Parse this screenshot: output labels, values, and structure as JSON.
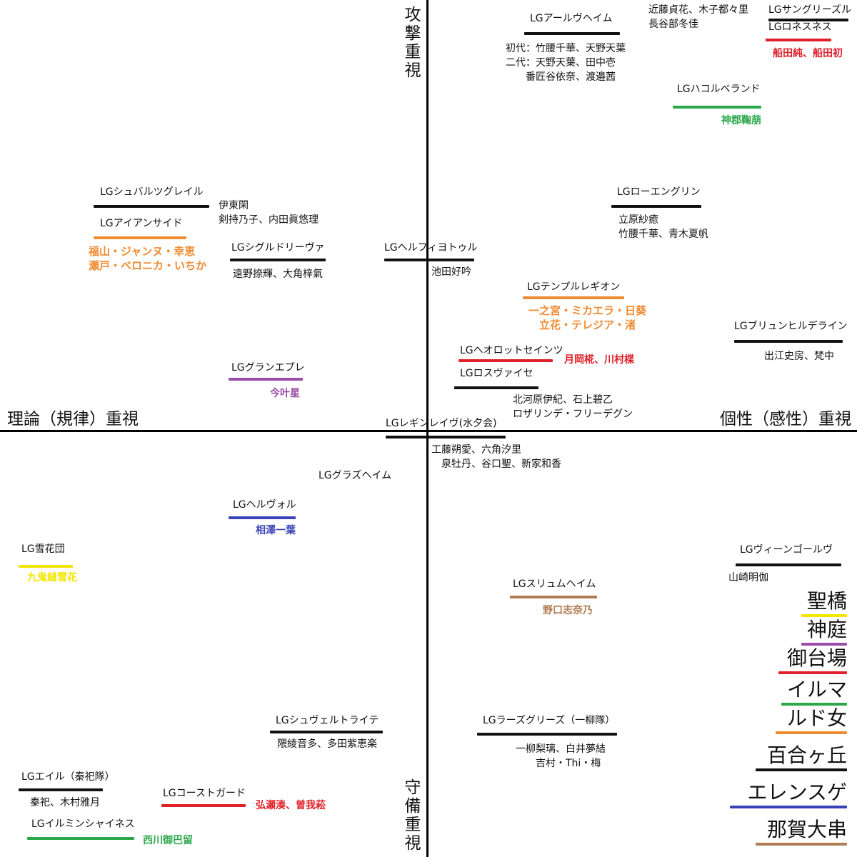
{
  "axes": {
    "top": "攻撃重視",
    "bottom": "守備重視",
    "left": "理論（規律）重視",
    "right": "個性（感性）重視"
  },
  "colors": {
    "black": "#111111",
    "orange": "#F08A30",
    "red": "#E0202A",
    "green": "#2AA84A",
    "purple": "#9A4AA8",
    "blue": "#3A42B8",
    "yellow": "#F2E600",
    "brown": "#B07A52"
  },
  "groups": [
    {
      "id": "alfheim",
      "name": "LGアールヴヘイム",
      "color": "black",
      "members": "初代：竹腰千華、天野天葉\n二代：天野天葉、田中壱\n　　番匠谷依奈、渡邉茜"
    },
    {
      "id": "sangriesl",
      "name": "LGサングリーズル",
      "color": "black",
      "members": ""
    },
    {
      "id": "sangriesl_pre",
      "name": "",
      "color": "black",
      "members": "近藤貞花、木子都々里\n長谷部冬佳"
    },
    {
      "id": "ronesness",
      "name": "LGロネスネス",
      "color": "red",
      "members": "船田純、船田初"
    },
    {
      "id": "hacol",
      "name": "LGハコルベランド",
      "color": "green",
      "members": "神郡鞠萠"
    },
    {
      "id": "svalzgrail",
      "name": "LGシュバルツグレイル",
      "color": "black",
      "members": "伊東閑\n剣持乃子、内田眞悠理"
    },
    {
      "id": "ironside",
      "name": "LGアイアンサイド",
      "color": "orange",
      "members": "福山・ジャンヌ・幸恵\n瀬戸・ベロニカ・いちか"
    },
    {
      "id": "sigrdrifa",
      "name": "LGシグルドリーヴァ",
      "color": "black",
      "members": "遠野捺輝、大角梓氣"
    },
    {
      "id": "helfjotur",
      "name": "LGヘルフィヨトゥル",
      "color": "black",
      "members": "池田好吟"
    },
    {
      "id": "lohengrin",
      "name": "LGローエングリン",
      "color": "black",
      "members": "立原紗癒\n竹腰千華、青木夏帆"
    },
    {
      "id": "temple",
      "name": "LGテンプルレギオン",
      "color": "orange",
      "members": "一之宮・ミカエラ・日葵\n　立花・テレジア・渚"
    },
    {
      "id": "brynhild",
      "name": "LGブリュンヒルデライン",
      "color": "black",
      "members": "出江史房、梵中"
    },
    {
      "id": "herot",
      "name": "LGヘオロットセインツ",
      "color": "red",
      "members": "月岡椛、川村楪"
    },
    {
      "id": "rosvaisse",
      "name": "LGロスヴァイセ",
      "color": "black",
      "members": "北河原伊紀、石上碧乙\nロザリンデ・フリーデグン"
    },
    {
      "id": "grandeple",
      "name": "LGグランエプレ",
      "color": "purple",
      "members": "今叶星"
    },
    {
      "id": "reginleif",
      "name": "LGレギンレイヴ(水夕会)",
      "color": "black",
      "members": "工藤朔愛、六角汐里\n　泉牡丹、谷口聖、新家和香"
    },
    {
      "id": "glasheim",
      "name": "LGグラズヘイム",
      "color": "black",
      "members": ""
    },
    {
      "id": "hervor",
      "name": "LGヘルヴォル",
      "color": "blue",
      "members": "相澤一葉"
    },
    {
      "id": "yukihana",
      "name": "LG雪花団",
      "color": "yellow",
      "members": "九鬼縫雪花"
    },
    {
      "id": "veengolv",
      "name": "LGヴィーンゴールヴ",
      "color": "black",
      "members": "山崎明伽"
    },
    {
      "id": "slumheim",
      "name": "LGスリュムヘイム",
      "color": "brown",
      "members": "野口志奈乃"
    },
    {
      "id": "schwertleite",
      "name": "LGシュヴェルトライテ",
      "color": "black",
      "members": "隈綾音多、多田紫恵楽"
    },
    {
      "id": "raths",
      "name": "LGラーズグリーズ（一柳隊）",
      "color": "black",
      "members": "一柳梨璃、白井夢結\n　　吉村・Thi・梅"
    },
    {
      "id": "eir",
      "name": "LGエイル（秦祀隊）",
      "color": "black",
      "members": "秦祀、木村雅月"
    },
    {
      "id": "coastguard",
      "name": "LGコーストガード",
      "color": "red",
      "members": "弘瀬湊、曽我菘"
    },
    {
      "id": "illuminshine",
      "name": "LGイルミンシャイネス",
      "color": "green",
      "members": "西川御巴留"
    }
  ],
  "schools": [
    {
      "name": "聖橋",
      "color": "yellow"
    },
    {
      "name": "神庭",
      "color": "purple"
    },
    {
      "name": "御台場",
      "color": "red"
    },
    {
      "name": "イルマ",
      "color": "green"
    },
    {
      "name": "ルド女",
      "color": "orange"
    },
    {
      "name": "百合ヶ丘",
      "color": "black"
    },
    {
      "name": "エレンスゲ",
      "color": "blue"
    },
    {
      "name": "那賀大串",
      "color": "brown"
    }
  ]
}
